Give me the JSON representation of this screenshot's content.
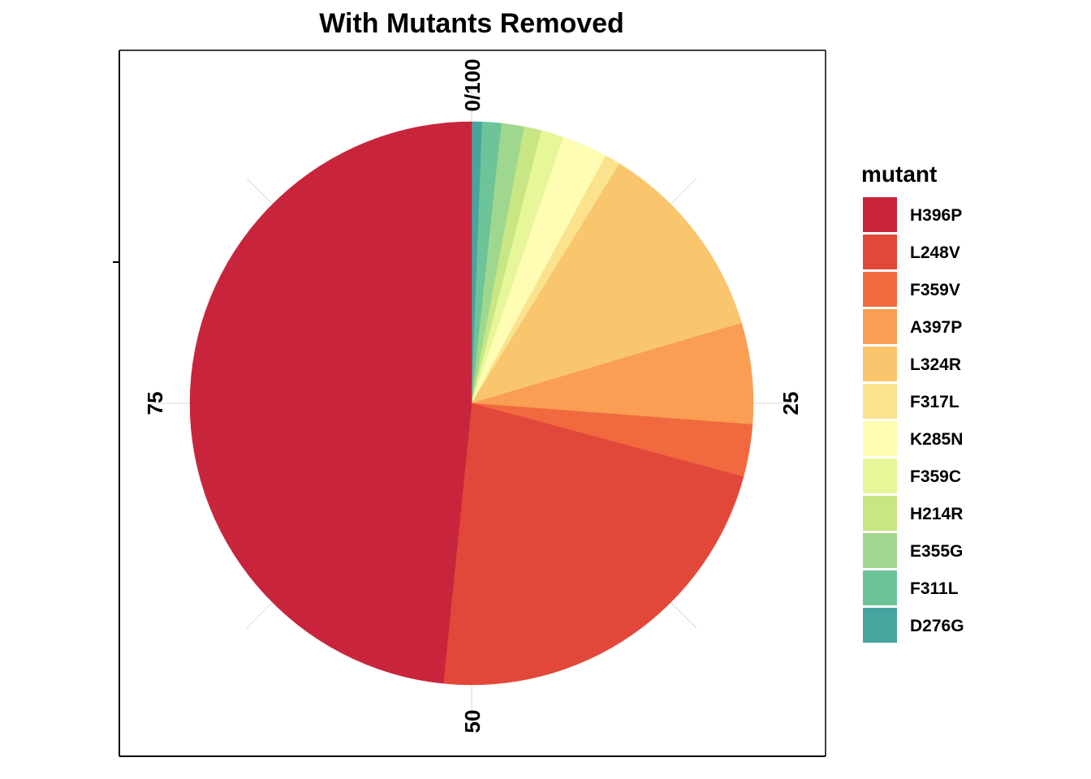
{
  "chart_data": {
    "type": "pie",
    "title": "With Mutants Removed",
    "legend_title": "mutant",
    "legend_position": "right",
    "theta_ticks": [
      "0/100",
      "25",
      "50",
      "75"
    ],
    "categories": [
      "H396P",
      "L248V",
      "F359V",
      "A397P",
      "L324R",
      "F317L",
      "K285N",
      "F359C",
      "H214R",
      "E355G",
      "F311L",
      "D276G"
    ],
    "colors": [
      "#C8253D",
      "#E2483A",
      "#F16A3F",
      "#F99E52",
      "#F9C66E",
      "#FBE28C",
      "#FEFDB3",
      "#E8F69A",
      "#C8E784",
      "#A0D78E",
      "#6CC498",
      "#47A5A0"
    ],
    "values": [
      48.4,
      22.4,
      3.0,
      5.8,
      11.6,
      0.9,
      2.6,
      1.3,
      1.0,
      1.3,
      1.1,
      0.6
    ],
    "grid": true
  }
}
